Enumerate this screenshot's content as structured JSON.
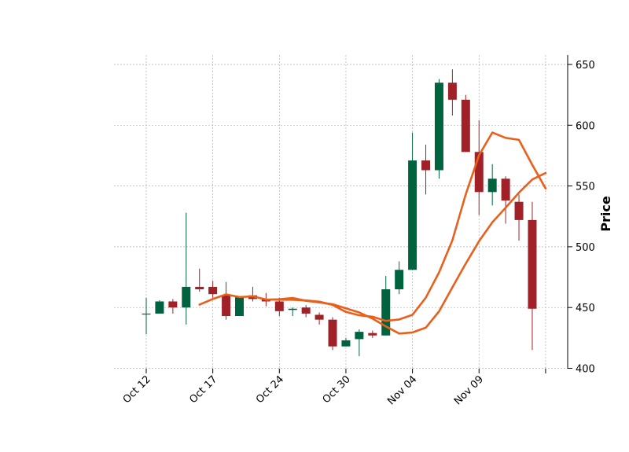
{
  "chart_data": {
    "type": "candlestick",
    "ylabel": "Price",
    "ylim": [
      400,
      658
    ],
    "yticks": [
      400,
      450,
      500,
      550,
      600,
      650
    ],
    "xtick_labels": [
      "Oct 12",
      "Oct 17",
      "Oct 24",
      "Oct 30",
      "Nov 04",
      "Nov 09",
      ""
    ],
    "xtick_index": [
      0,
      5,
      10,
      15,
      20,
      25,
      30
    ],
    "grid": true,
    "colors": {
      "up": "#006340",
      "down": "#a02128",
      "ma": "#e8601c",
      "grid": "#b0b0b0",
      "axis": "#000000"
    },
    "candles": [
      {
        "o": 445,
        "h": 458,
        "l": 428,
        "c": 445
      },
      {
        "o": 445,
        "h": 456,
        "l": 445,
        "c": 455
      },
      {
        "o": 455,
        "h": 457,
        "l": 445,
        "c": 450
      },
      {
        "o": 450,
        "h": 528,
        "l": 436,
        "c": 467
      },
      {
        "o": 467,
        "h": 482,
        "l": 463,
        "c": 465
      },
      {
        "o": 467,
        "h": 472,
        "l": 458,
        "c": 461
      },
      {
        "o": 460,
        "h": 471,
        "l": 440,
        "c": 443
      },
      {
        "o": 443,
        "h": 459,
        "l": 443,
        "c": 459
      },
      {
        "o": 460,
        "h": 467,
        "l": 455,
        "c": 457
      },
      {
        "o": 457,
        "h": 462,
        "l": 451,
        "c": 455
      },
      {
        "o": 455,
        "h": 458,
        "l": 443,
        "c": 447
      },
      {
        "o": 448,
        "h": 450,
        "l": 443,
        "c": 449
      },
      {
        "o": 450,
        "h": 452,
        "l": 442,
        "c": 445
      },
      {
        "o": 444,
        "h": 446,
        "l": 436,
        "c": 440
      },
      {
        "o": 440,
        "h": 442,
        "l": 415,
        "c": 418
      },
      {
        "o": 418,
        "h": 425,
        "l": 418,
        "c": 423
      },
      {
        "o": 424,
        "h": 432,
        "l": 410,
        "c": 430
      },
      {
        "o": 429,
        "h": 431,
        "l": 425,
        "c": 427
      },
      {
        "o": 427,
        "h": 476,
        "l": 427,
        "c": 465
      },
      {
        "o": 465,
        "h": 488,
        "l": 461,
        "c": 481
      },
      {
        "o": 481,
        "h": 594,
        "l": 481,
        "c": 571
      },
      {
        "o": 571,
        "h": 584,
        "l": 543,
        "c": 563
      },
      {
        "o": 563,
        "h": 638,
        "l": 556,
        "c": 635
      },
      {
        "o": 635,
        "h": 646,
        "l": 608,
        "c": 621
      },
      {
        "o": 621,
        "h": 625,
        "l": 578,
        "c": 578
      },
      {
        "o": 578,
        "h": 604,
        "l": 526,
        "c": 545
      },
      {
        "o": 545,
        "h": 568,
        "l": 534,
        "c": 556
      },
      {
        "o": 556,
        "h": 558,
        "l": 519,
        "c": 538
      },
      {
        "o": 537,
        "h": 543,
        "l": 505,
        "c": 522
      },
      {
        "o": 522,
        "h": 537,
        "l": 415,
        "c": 449
      }
    ],
    "moving_averages": [
      {
        "start": 4,
        "values": [
          452.4,
          457.0,
          460.8,
          458.6,
          459.2,
          456.6,
          456.4,
          456.4,
          455.8,
          454.8,
          452.2,
          446.4,
          443.6,
          442.4,
          439.0,
          440.2,
          444.0,
          458.0,
          479.0,
          505.4,
          543.0,
          575.4,
          594.0,
          589.6,
          588.0,
          567.4,
          548.0
        ]
      },
      {
        "start": 9,
        "values": [
          456.4,
          456.8,
          457.9,
          455.5,
          454.2,
          452.7,
          449.3,
          445.9,
          440.9,
          434.5,
          428.6,
          429.5,
          433.4,
          446.9,
          466.6,
          486.1,
          504.6,
          520.2,
          532.1,
          544.5,
          555.4,
          560.7
        ]
      }
    ]
  }
}
